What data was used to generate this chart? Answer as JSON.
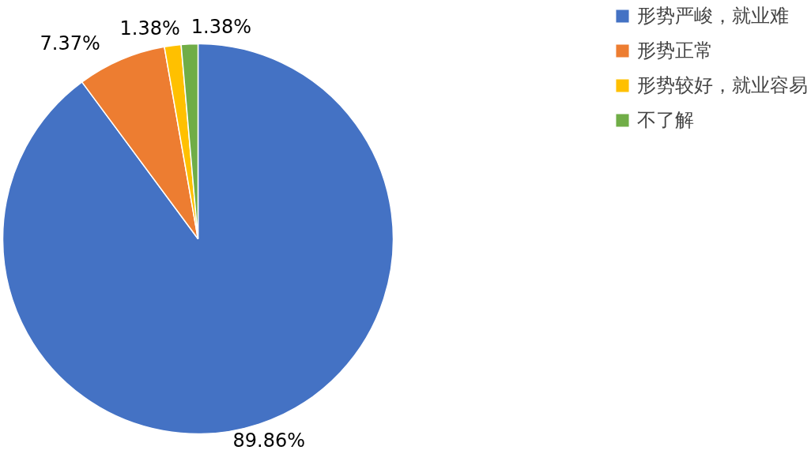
{
  "chart_data": {
    "type": "pie",
    "categories": [
      "形势严峻，就业难",
      "形势正常",
      "形势较好，就业容易",
      "不了解"
    ],
    "values": [
      89.86,
      7.37,
      1.38,
      1.38
    ],
    "colors": [
      "#4472c4",
      "#ed7d31",
      "#ffc000",
      "#70ad47"
    ],
    "value_labels": [
      "89.86%",
      "7.37%",
      "1.38%",
      "1.38%"
    ],
    "legend": "top right"
  }
}
